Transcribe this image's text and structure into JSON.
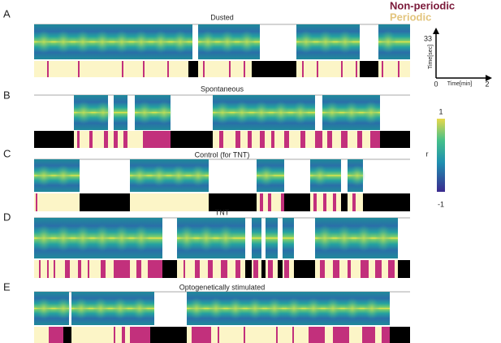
{
  "legend": {
    "non_periodic": "Non-periodic",
    "periodic": "Periodic"
  },
  "panels": [
    {
      "letter": "A",
      "title": "Dusted"
    },
    {
      "letter": "B",
      "title": "Spontaneous"
    },
    {
      "letter": "C",
      "title": "Control (for TNT)"
    },
    {
      "letter": "D",
      "title": "TNT"
    },
    {
      "letter": "E",
      "title": "Optogenetically stimulated"
    }
  ],
  "axes_key": {
    "y_max": 33,
    "y_label": "Time[sec]",
    "origin": 0,
    "x_label": "Time[min]",
    "x_max": 2
  },
  "colorbar": {
    "max": 1,
    "label": "r",
    "min": -1
  }
}
